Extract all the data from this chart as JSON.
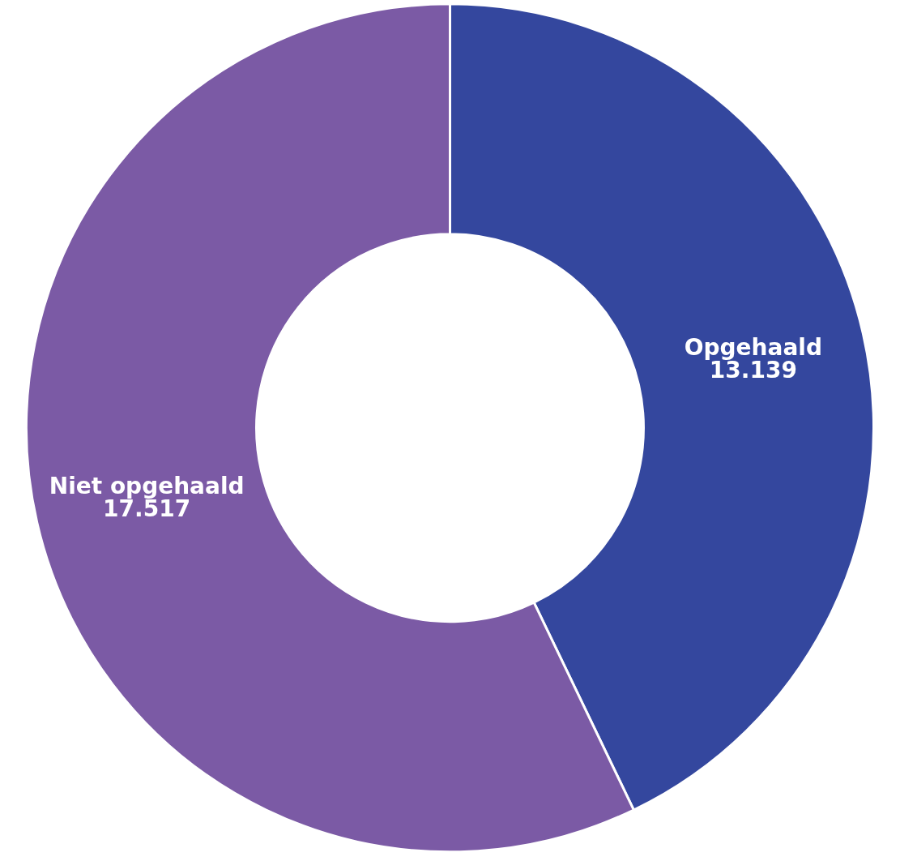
{
  "chart_data": {
    "type": "donut",
    "categories": [
      "Opgehaald",
      "Niet opgehaald"
    ],
    "values": [
      13139,
      17517
    ],
    "value_labels": [
      "13.139",
      "17.517"
    ],
    "colors": [
      "#34479e",
      "#7b5aa5"
    ],
    "legend": false
  }
}
